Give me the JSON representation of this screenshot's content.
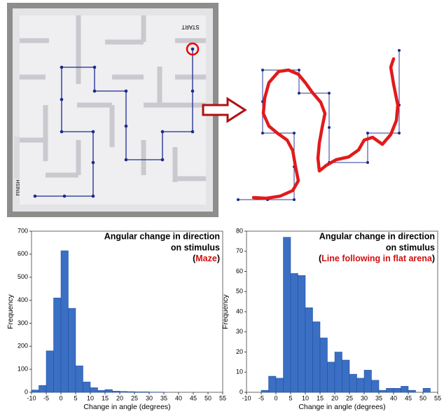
{
  "photo": {
    "start_label": "START",
    "finish_label": "FINISH"
  },
  "chart_data": [
    {
      "type": "histogram",
      "title": [
        "Angular change in direction",
        "on stimulus"
      ],
      "subtitle": [
        "(",
        "Maze",
        ")"
      ],
      "x_label": "Change in angle (degrees)",
      "y_label": "Frequency",
      "color": "#3a6fc4",
      "bins": [
        -10,
        -7.5,
        -5,
        -2.5,
        0,
        2.5,
        5,
        7.5,
        10,
        12.5,
        15,
        17.5,
        20,
        22.5,
        25,
        27.5,
        30,
        32.5,
        35,
        37.5,
        40,
        42.5,
        45,
        47.5,
        50,
        52.5,
        55
      ],
      "counts": [
        10,
        30,
        180,
        410,
        615,
        365,
        115,
        45,
        20,
        8,
        12,
        5,
        4,
        3,
        2,
        2,
        1,
        1,
        0,
        0,
        0,
        0,
        0,
        0,
        0,
        0
      ],
      "xlim": [
        -10,
        55
      ],
      "xticks": [
        -10,
        -5,
        0,
        5,
        10,
        15,
        20,
        25,
        30,
        35,
        40,
        45,
        50,
        55
      ],
      "ylim": [
        0,
        700
      ],
      "yticks": [
        0,
        100,
        200,
        300,
        400,
        500,
        600,
        700
      ]
    },
    {
      "type": "histogram",
      "title": [
        "Angular change in direction",
        "on stimulus"
      ],
      "subtitle": [
        "(",
        "Line following in flat arena",
        ")"
      ],
      "x_label": "Change in angle (degrees)",
      "y_label": "Frequency",
      "color": "#3a6fc4",
      "bins": [
        -5,
        -2.5,
        0,
        2.5,
        5,
        7.5,
        10,
        12.5,
        15,
        17.5,
        20,
        22.5,
        25,
        27.5,
        30,
        32.5,
        35,
        37.5,
        40,
        42.5,
        45,
        47.5,
        50,
        52.5,
        55
      ],
      "counts": [
        1,
        8,
        7,
        77,
        59,
        58,
        42,
        35,
        27,
        15,
        20,
        16,
        9,
        7,
        11,
        6,
        1,
        2,
        2,
        3,
        1,
        0,
        2,
        0
      ],
      "xlim": [
        -10,
        55
      ],
      "xticks": [
        -10,
        -5,
        0,
        5,
        10,
        15,
        20,
        25,
        30,
        35,
        40,
        45,
        50,
        55
      ],
      "ylim": [
        0,
        80
      ],
      "yticks": [
        0,
        10,
        20,
        30,
        40,
        50,
        60,
        70,
        80
      ]
    }
  ]
}
